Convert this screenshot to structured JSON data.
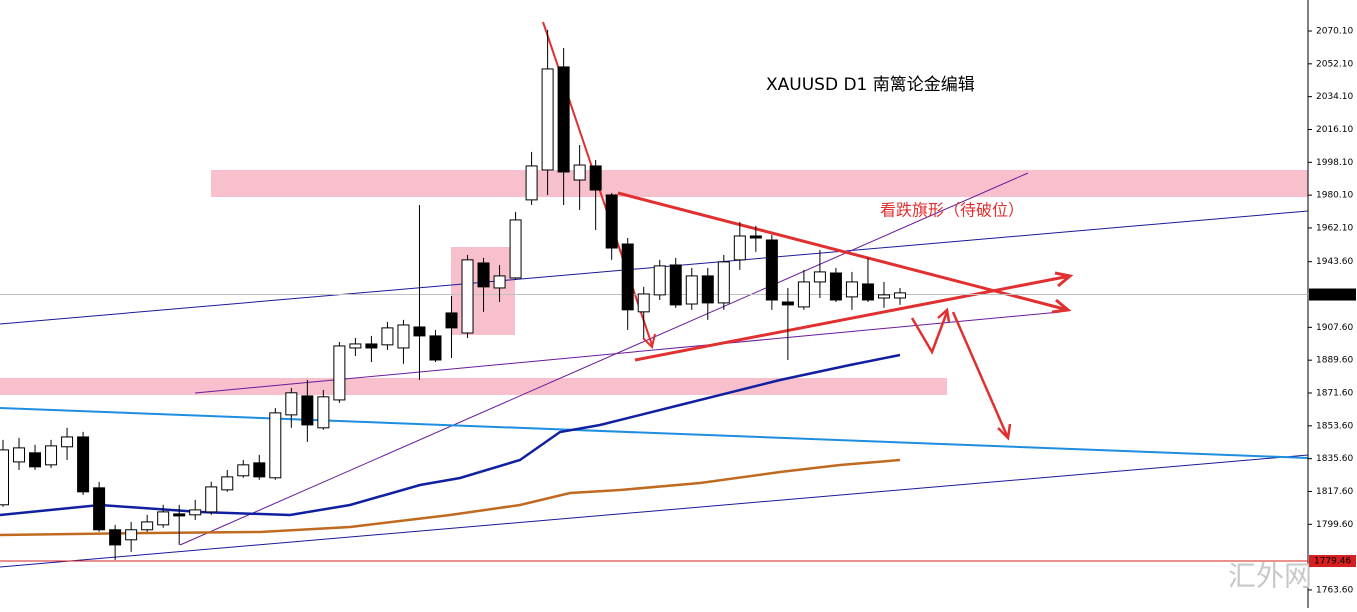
{
  "chart_data": {
    "type": "candlestick",
    "title": "XAUUSD  D1  南篱论金编辑",
    "annotation": "看跌旗形（待破位）",
    "watermark": "汇外网",
    "ylim": [
      1753.7,
      2087.1
    ],
    "yticks": [
      {
        "value": 1763.6,
        "label": "1763.60"
      },
      {
        "value": 1799.6,
        "label": "1799.60"
      },
      {
        "value": 1817.6,
        "label": "1817.60"
      },
      {
        "value": 1835.6,
        "label": "1835.60"
      },
      {
        "value": 1853.6,
        "label": "1853.60"
      },
      {
        "value": 1871.6,
        "label": "1871.60"
      },
      {
        "value": 1889.6,
        "label": "1889.60"
      },
      {
        "value": 1907.6,
        "label": "1907.60"
      },
      {
        "value": 1943.6,
        "label": "1943.60"
      },
      {
        "value": 1962.1,
        "label": "1962.10"
      },
      {
        "value": 1980.1,
        "label": "1980.10"
      },
      {
        "value": 1998.1,
        "label": "1998.10"
      },
      {
        "value": 2016.1,
        "label": "2016.10"
      },
      {
        "value": 2034.1,
        "label": "2034.10"
      },
      {
        "value": 2052.1,
        "label": "2052.10"
      },
      {
        "value": 2070.1,
        "label": "2070.10"
      }
    ],
    "price_line": {
      "value": 1925.6,
      "label": "1925.60",
      "color": "#000000"
    },
    "level_line": {
      "value": 1779.46,
      "label": "1779.46",
      "color": "#d62020"
    },
    "up_color": "#ffffff",
    "down_color": "#000000",
    "open": [
      1810.3,
      1833.8,
      1838.8,
      1832.2,
      1842.1,
      1847.5,
      1819.6,
      1796.6,
      1791.1,
      1796.6,
      1799.3,
      1805.3,
      1804.8,
      1806.4,
      1818.5,
      1826.2,
      1833.3,
      1825.1,
      1859.6,
      1870.0,
      1852.5,
      1867.8,
      1896.3,
      1898.5,
      1898.0,
      1896.3,
      1907.8,
      1902.9,
      1915.5,
      1904.5,
      1942.9,
      1929.2,
      1934.7,
      1977.5,
      1993.9,
      2050.4,
      1988.4,
      1996.1,
      1980.2,
      1953.3,
      1916.1,
      1925.4,
      1941.8,
      1920.4,
      1935.8,
      1921.0,
      1944.6,
      1957.7,
      1955.5,
      1921.5,
      1918.8,
      1932.5,
      1937.4,
      1924.3,
      1931.4,
      1923.7,
      1923.7
    ],
    "high": [
      1845.9,
      1847.0,
      1843.2,
      1845.9,
      1852.5,
      1850.3,
      1822.9,
      1799.3,
      1800.9,
      1804.8,
      1810.3,
      1810.3,
      1813.0,
      1822.9,
      1829.4,
      1834.9,
      1837.7,
      1863.4,
      1874.4,
      1878.8,
      1873.3,
      1899.6,
      1901.8,
      1902.9,
      1910.6,
      1911.7,
      1974.7,
      1906.2,
      1924.8,
      1947.3,
      1945.7,
      1941.8,
      1970.9,
      2003.8,
      2070.7,
      2060.8,
      2007.6,
      1999.4,
      1981.3,
      1956.6,
      1929.8,
      1944.6,
      1945.7,
      1940.2,
      1940.2,
      1947.3,
      1965.4,
      1963.2,
      1958.3,
      1929.2,
      1939.1,
      1950.0,
      1940.2,
      1938.0,
      1945.7,
      1932.5,
      1929.2
    ],
    "low": [
      1809.2,
      1829.4,
      1829.4,
      1830.5,
      1834.9,
      1815.7,
      1795.5,
      1780.1,
      1784.5,
      1795.5,
      1797.7,
      1788.3,
      1802.0,
      1804.8,
      1817.4,
      1825.1,
      1824.0,
      1824.0,
      1852.5,
      1844.8,
      1851.4,
      1866.2,
      1891.9,
      1888.6,
      1895.2,
      1887.6,
      1878.8,
      1888.6,
      1890.8,
      1901.8,
      1916.1,
      1921.5,
      1933.6,
      1974.7,
      1980.2,
      1974.7,
      1972.0,
      1961.0,
      1944.6,
      1906.2,
      1901.8,
      1922.6,
      1918.3,
      1917.2,
      1911.7,
      1917.2,
      1939.1,
      1949.0,
      1917.2,
      1889.7,
      1917.2,
      1923.7,
      1921.5,
      1917.2,
      1921.5,
      1918.3,
      1919.9
    ],
    "close": [
      1840.4,
      1841.5,
      1831.1,
      1842.6,
      1847.5,
      1817.4,
      1796.6,
      1788.3,
      1796.6,
      1800.9,
      1806.4,
      1804.2,
      1807.5,
      1820.1,
      1825.6,
      1832.2,
      1825.6,
      1860.7,
      1871.7,
      1854.1,
      1869.5,
      1897.4,
      1898.5,
      1896.3,
      1907.3,
      1908.9,
      1902.9,
      1889.7,
      1907.3,
      1944.6,
      1929.8,
      1935.8,
      1966.5,
      1996.1,
      2049.3,
      1992.8,
      1996.6,
      1982.9,
      1951.1,
      1917.2,
      1925.9,
      1941.3,
      1919.9,
      1935.8,
      1921.0,
      1943.5,
      1957.7,
      1956.6,
      1922.6,
      1919.9,
      1932.5,
      1938.0,
      1922.6,
      1932.5,
      1922.6,
      1925.4,
      1926.5
    ]
  }
}
